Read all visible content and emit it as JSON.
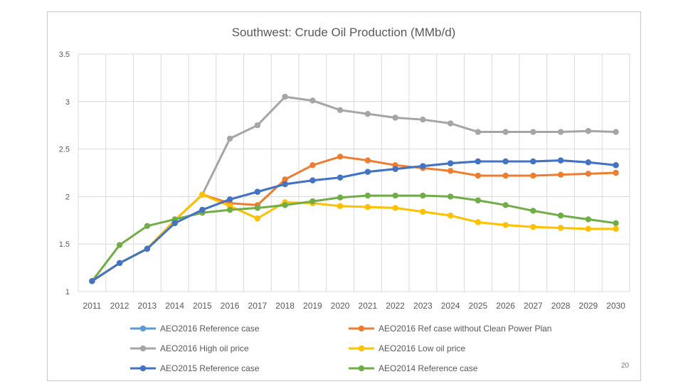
{
  "slide_number": "20",
  "chart_data": {
    "type": "line",
    "title": "Southwest: Crude Oil Production (MMb/d)",
    "xlabel": "",
    "ylabel": "",
    "ylim": [
      1,
      3.5
    ],
    "yticks": [
      1,
      1.5,
      2,
      2.5,
      3,
      3.5
    ],
    "ytick_labels": [
      "1",
      "1.5",
      "2",
      "2.5",
      "3",
      "3.5"
    ],
    "grid": true,
    "legend_position": "bottom",
    "categories": [
      "2011",
      "2012",
      "2013",
      "2014",
      "2015",
      "2016",
      "2017",
      "2018",
      "2019",
      "2020",
      "2021",
      "2022",
      "2023",
      "2024",
      "2025",
      "2026",
      "2027",
      "2028",
      "2029",
      "2030"
    ],
    "series": [
      {
        "name": "AEO2016 Reference case",
        "color": "#5B9BD5",
        "values": [
          1.11,
          1.3,
          1.45,
          1.72,
          1.86,
          1.97,
          2.05,
          2.13,
          2.17,
          2.2,
          2.26,
          2.29,
          2.32,
          2.35,
          2.37,
          2.37,
          2.37,
          2.38,
          2.36,
          2.33
        ]
      },
      {
        "name": "AEO2016 Ref case without Clean Power Plan",
        "color": "#ED7D31",
        "values": [
          1.11,
          1.3,
          1.45,
          1.75,
          2.02,
          1.93,
          1.91,
          2.18,
          2.33,
          2.42,
          2.38,
          2.33,
          2.3,
          2.27,
          2.22,
          2.22,
          2.22,
          2.23,
          2.24,
          2.25
        ]
      },
      {
        "name": "AEO2016 High oil price",
        "color": "#A5A5A5",
        "values": [
          1.11,
          1.3,
          1.45,
          1.75,
          2.02,
          2.61,
          2.75,
          3.05,
          3.01,
          2.91,
          2.87,
          2.83,
          2.81,
          2.77,
          2.68,
          2.68,
          2.68,
          2.68,
          2.69,
          2.68
        ]
      },
      {
        "name": "AEO2016 Low oil price",
        "color": "#FFC000",
        "values": [
          1.11,
          1.3,
          1.45,
          1.75,
          2.02,
          1.9,
          1.77,
          1.94,
          1.93,
          1.9,
          1.89,
          1.88,
          1.84,
          1.8,
          1.73,
          1.7,
          1.68,
          1.67,
          1.66,
          1.66
        ]
      },
      {
        "name": "AEO2015 Reference case",
        "color": "#4472C4",
        "values": [
          1.11,
          1.3,
          1.45,
          1.72,
          1.86,
          1.97,
          2.05,
          2.13,
          2.17,
          2.2,
          2.26,
          2.29,
          2.32,
          2.35,
          2.37,
          2.37,
          2.37,
          2.38,
          2.36,
          2.33
        ]
      },
      {
        "name": "AEO2014 Reference case",
        "color": "#70AD47",
        "values": [
          1.11,
          1.49,
          1.69,
          1.76,
          1.83,
          1.86,
          1.88,
          1.91,
          1.95,
          1.99,
          2.01,
          2.01,
          2.01,
          2.0,
          1.96,
          1.91,
          1.85,
          1.8,
          1.76,
          1.72
        ]
      }
    ]
  }
}
